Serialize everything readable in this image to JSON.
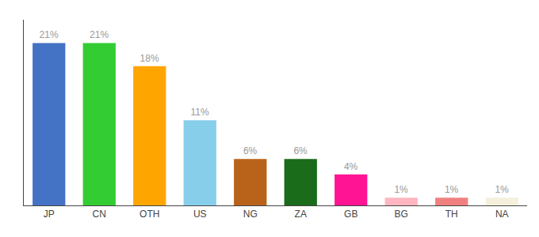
{
  "chart_data": {
    "type": "bar",
    "categories": [
      "JP",
      "CN",
      "OTH",
      "US",
      "NG",
      "ZA",
      "GB",
      "BG",
      "TH",
      "NA"
    ],
    "values": [
      21,
      21,
      18,
      11,
      6,
      6,
      4,
      1,
      1,
      1
    ],
    "value_labels": [
      "21%",
      "21%",
      "18%",
      "11%",
      "6%",
      "6%",
      "4%",
      "1%",
      "1%",
      "1%"
    ],
    "colors": [
      "#4472c4",
      "#33cc33",
      "#ffa500",
      "#87ceeb",
      "#b8621a",
      "#1a6b1a",
      "#ff1493",
      "#ffb6c1",
      "#f08080",
      "#f5f0dc"
    ],
    "ylim": [
      0,
      24
    ],
    "grid": false,
    "data_labels": true,
    "tick_labels": "x"
  }
}
